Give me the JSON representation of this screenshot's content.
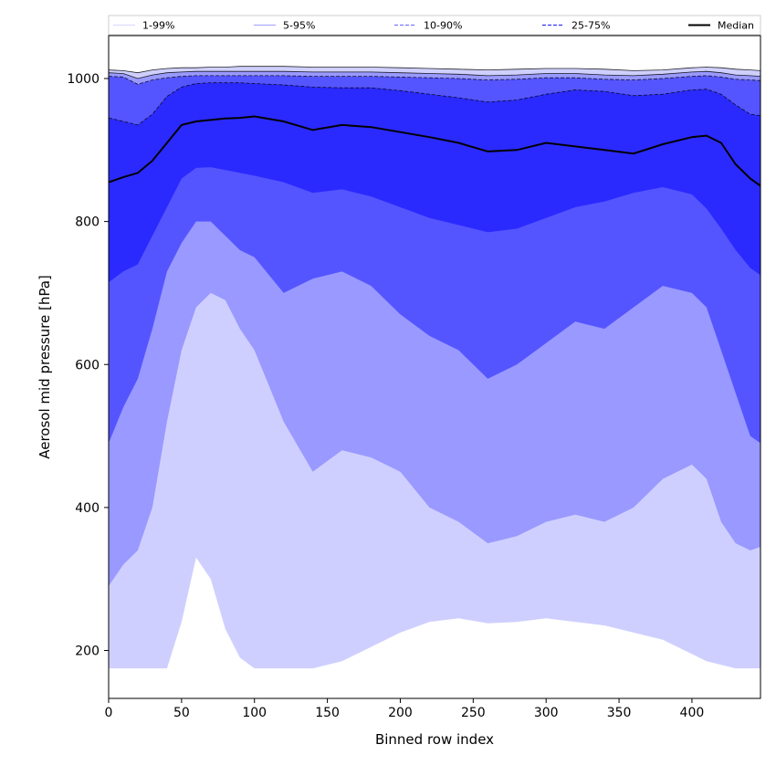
{
  "chart_data": {
    "type": "area",
    "title": "",
    "xlabel": "Binned row index",
    "ylabel": "Aerosol mid pressure [hPa]",
    "xlim": [
      0,
      447
    ],
    "ylim": [
      133,
      1060
    ],
    "xticks": [
      0,
      50,
      100,
      150,
      200,
      250,
      300,
      350,
      400
    ],
    "yticks": [
      200,
      400,
      600,
      800,
      1000
    ],
    "grid": false,
    "legend_position": "top, full width",
    "x": [
      0,
      10,
      20,
      30,
      40,
      50,
      60,
      70,
      80,
      90,
      100,
      120,
      140,
      160,
      180,
      200,
      220,
      240,
      260,
      280,
      300,
      320,
      340,
      360,
      380,
      400,
      410,
      420,
      430,
      440,
      447
    ],
    "series": [
      {
        "name": "1-99%",
        "kind": "band",
        "color": "#cfcfff",
        "style": "solid",
        "lower": [
          175,
          175,
          175,
          175,
          175,
          240,
          330,
          300,
          230,
          190,
          175,
          175,
          175,
          185,
          205,
          225,
          240,
          245,
          238,
          240,
          245,
          240,
          235,
          225,
          215,
          195,
          185,
          180,
          175,
          175,
          175
        ],
        "upper": [
          1012,
          1011,
          1008,
          1012,
          1014,
          1015,
          1015,
          1016,
          1016,
          1017,
          1017,
          1017,
          1016,
          1016,
          1016,
          1015,
          1014,
          1013,
          1012,
          1013,
          1014,
          1014,
          1013,
          1011,
          1012,
          1015,
          1016,
          1015,
          1013,
          1012,
          1011
        ]
      },
      {
        "name": "5-95%",
        "kind": "band",
        "color": "#9999ff",
        "style": "solid",
        "lower": [
          290,
          320,
          340,
          400,
          520,
          620,
          680,
          700,
          690,
          650,
          620,
          520,
          450,
          480,
          470,
          450,
          400,
          380,
          350,
          360,
          380,
          390,
          380,
          400,
          440,
          460,
          440,
          380,
          350,
          340,
          345
        ],
        "upper": [
          1008,
          1007,
          1000,
          1005,
          1008,
          1009,
          1010,
          1010,
          1010,
          1010,
          1010,
          1010,
          1009,
          1009,
          1009,
          1008,
          1007,
          1006,
          1004,
          1005,
          1007,
          1007,
          1005,
          1004,
          1006,
          1009,
          1010,
          1008,
          1005,
          1004,
          1003
        ]
      },
      {
        "name": "10-90%",
        "kind": "band",
        "color": "#5555ff",
        "style": "dashed",
        "lower": [
          490,
          540,
          580,
          650,
          730,
          770,
          800,
          800,
          780,
          760,
          750,
          700,
          720,
          730,
          710,
          670,
          640,
          620,
          580,
          600,
          630,
          660,
          650,
          680,
          710,
          700,
          680,
          620,
          560,
          500,
          490
        ],
        "upper": [
          1003,
          1002,
          992,
          998,
          1001,
          1003,
          1004,
          1004,
          1004,
          1004,
          1004,
          1004,
          1003,
          1003,
          1003,
          1002,
          1001,
          1000,
          998,
          999,
          1001,
          1001,
          999,
          998,
          1000,
          1003,
          1004,
          1002,
          999,
          998,
          997
        ]
      },
      {
        "name": "25-75%",
        "kind": "band",
        "color": "#2a2aff",
        "style": "dashed",
        "lower": [
          715,
          730,
          740,
          780,
          820,
          860,
          875,
          876,
          872,
          868,
          864,
          855,
          840,
          845,
          835,
          820,
          805,
          795,
          785,
          790,
          805,
          820,
          828,
          840,
          848,
          838,
          818,
          790,
          760,
          735,
          725
        ],
        "upper": [
          945,
          940,
          935,
          950,
          975,
          988,
          993,
          994,
          994,
          994,
          993,
          991,
          988,
          987,
          987,
          983,
          978,
          973,
          967,
          970,
          978,
          984,
          982,
          976,
          978,
          984,
          985,
          978,
          963,
          950,
          948
        ]
      },
      {
        "name": "Median",
        "kind": "line",
        "color": "#000000",
        "style": "solid",
        "values": [
          855,
          862,
          868,
          885,
          910,
          935,
          940,
          942,
          944,
          945,
          947,
          940,
          928,
          935,
          932,
          925,
          918,
          910,
          898,
          900,
          910,
          905,
          900,
          895,
          908,
          918,
          920,
          910,
          880,
          860,
          850
        ]
      }
    ]
  }
}
